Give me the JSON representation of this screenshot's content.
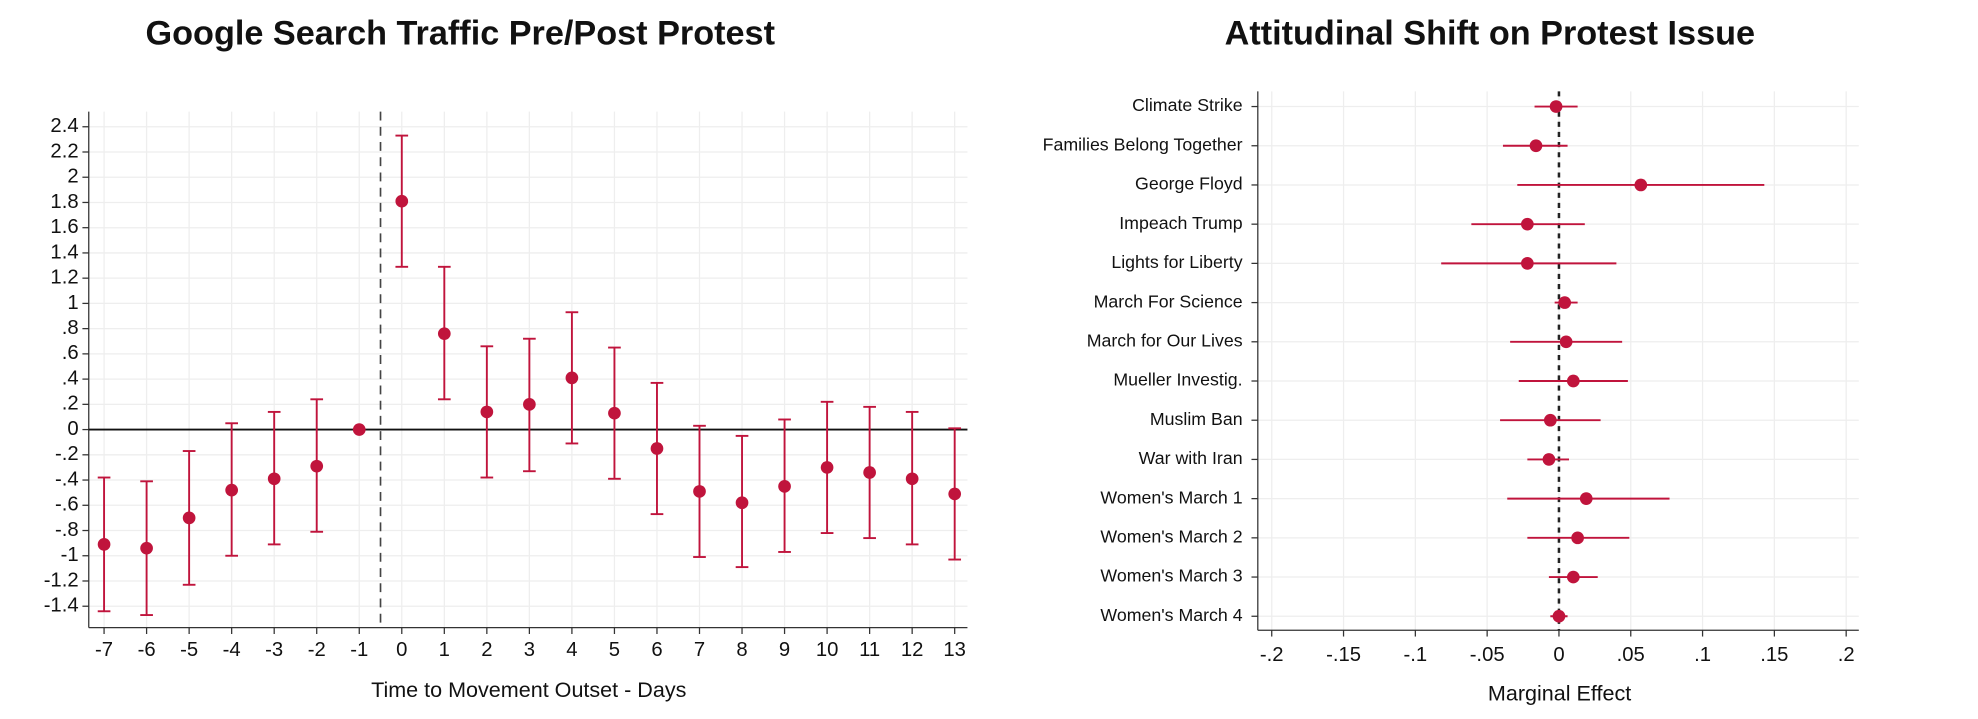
{
  "chart_data": [
    {
      "type": "errorbar",
      "orientation": "vertical",
      "title": "Google Search Traffic Pre/Post Protest",
      "x_label": "Time to Movement Outset - Days",
      "x": [
        -7,
        -6,
        -5,
        -4,
        -3,
        -2,
        -1,
        0,
        1,
        2,
        3,
        4,
        5,
        6,
        7,
        8,
        9,
        10,
        11,
        12,
        13
      ],
      "values": [
        -0.91,
        -0.94,
        -0.7,
        -0.48,
        -0.39,
        -0.29,
        0,
        1.81,
        0.76,
        0.14,
        0.2,
        0.41,
        0.13,
        -0.15,
        -0.49,
        -0.58,
        -0.45,
        -0.3,
        -0.34,
        -0.39,
        -0.51
      ],
      "lower": [
        -1.44,
        -1.47,
        -1.23,
        -1.0,
        -0.91,
        -0.81,
        null,
        1.29,
        0.24,
        -0.38,
        -0.33,
        -0.11,
        -0.39,
        -0.67,
        -1.01,
        -1.09,
        -0.97,
        -0.82,
        -0.86,
        -0.91,
        -1.03
      ],
      "upper": [
        -0.38,
        -0.41,
        -0.17,
        0.05,
        0.14,
        0.24,
        null,
        2.33,
        1.29,
        0.66,
        0.72,
        0.93,
        0.65,
        0.37,
        0.03,
        -0.05,
        0.08,
        0.22,
        0.18,
        0.14,
        0.01
      ],
      "color": "#c0143c",
      "xlim": [
        -7.36,
        13.3
      ],
      "xticks": [
        -7,
        -6,
        -5,
        -4,
        -3,
        -2,
        -1,
        0,
        1,
        2,
        3,
        4,
        5,
        6,
        7,
        8,
        9,
        10,
        11,
        12,
        13
      ],
      "ylim": [
        -1.57,
        2.52
      ],
      "yticks": [
        -1.4,
        -1.2,
        -1,
        {
          "value": -0.8,
          "label": "-.8"
        },
        {
          "value": -0.6,
          "label": "-.6"
        },
        {
          "value": -0.4,
          "label": "-.4"
        },
        {
          "value": -0.2,
          "label": "-.2"
        },
        0,
        {
          "value": 0.2,
          "label": ".2"
        },
        {
          "value": 0.4,
          "label": ".4"
        },
        {
          "value": 0.6,
          "label": ".6"
        },
        {
          "value": 0.8,
          "label": ".8"
        },
        1,
        1.2,
        1.4,
        1.6,
        1.8,
        2,
        2.2,
        2.4
      ],
      "vline": -0.5,
      "hline": 0,
      "grid": true
    },
    {
      "type": "errorbar",
      "orientation": "horizontal",
      "title": "Attitudinal Shift on Protest Issue",
      "x_label": "Marginal Effect",
      "categories": [
        "Climate Strike",
        "Families Belong Together",
        "George Floyd",
        "Impeach Trump",
        "Lights for Liberty",
        "March For Science",
        "March for Our Lives",
        "Mueller Investig.",
        "Muslim Ban",
        "War with Iran",
        "Women's March 1",
        "Women's March 2",
        "Women's March 3",
        "Women's March 4"
      ],
      "values": [
        -0.002,
        -0.016,
        0.057,
        -0.022,
        -0.022,
        0.004,
        0.005,
        0.01,
        -0.006,
        -0.007,
        0.019,
        0.013,
        0.01,
        0.0
      ],
      "lower": [
        -0.017,
        -0.039,
        -0.029,
        -0.061,
        -0.082,
        -0.003,
        -0.034,
        -0.028,
        -0.041,
        -0.022,
        -0.036,
        -0.022,
        -0.007,
        -0.006
      ],
      "upper": [
        0.013,
        0.006,
        0.143,
        0.018,
        0.04,
        0.013,
        0.044,
        0.048,
        0.029,
        0.007,
        0.077,
        0.049,
        0.027,
        0.006
      ],
      "color": "#c0143c",
      "xlim": [
        -0.2097,
        0.2088
      ],
      "xticks": [
        {
          "value": -0.2,
          "label": "-.2"
        },
        {
          "value": -0.15,
          "label": "-.15"
        },
        {
          "value": -0.1,
          "label": "-.1"
        },
        {
          "value": -0.05,
          "label": "-.05"
        },
        0,
        {
          "value": 0.05,
          "label": ".05"
        },
        {
          "value": 0.1,
          "label": ".1"
        },
        {
          "value": 0.15,
          "label": ".15"
        },
        {
          "value": 0.2,
          "label": ".2"
        }
      ],
      "vline": 0,
      "grid": true
    }
  ]
}
